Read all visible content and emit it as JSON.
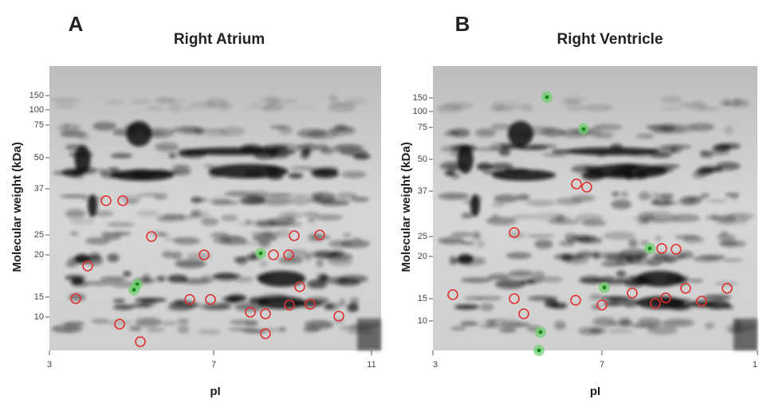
{
  "panels": [
    {
      "letter": "A",
      "title": "Right Atrium",
      "y_label": "Molecular weight (kDa)",
      "x_label": "pI",
      "yticks": [
        "150",
        "100",
        "75",
        "50",
        "37",
        "25",
        "20",
        "15",
        "10"
      ],
      "xticks": [
        "3",
        "7",
        "11"
      ]
    },
    {
      "letter": "B",
      "title": "Right Ventricle",
      "y_label": "Molecular weight (kDa)",
      "x_label": "pI",
      "yticks": [
        "150",
        "100",
        "75",
        "50",
        "37",
        "25",
        "20",
        "15",
        "10"
      ],
      "xticks": [
        "3",
        "7",
        "1"
      ]
    }
  ]
}
